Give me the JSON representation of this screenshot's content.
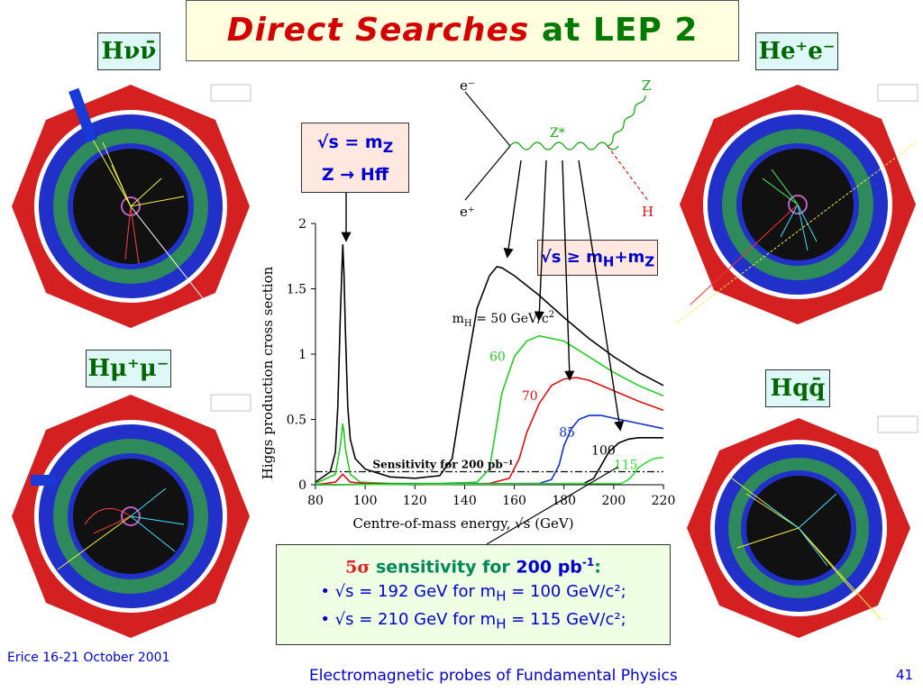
{
  "title": {
    "part1": "Direct Searches",
    "part2": "at LEP 2"
  },
  "labels": {
    "hnn": "Hνν̄",
    "hee": "He⁺e⁻",
    "hmm": "Hμ⁺μ⁻",
    "hqq": "Hqq̄"
  },
  "feynman": {
    "e_minus": "e⁻",
    "e_plus": "e⁺",
    "zstar": "Z*",
    "z": "Z",
    "h": "H"
  },
  "box_mz": {
    "line1": "√s = m",
    "line1_sub": "Z",
    "line2": "Z → Hff̄"
  },
  "box_mhmz": {
    "text": "√s ≥ m",
    "sub_h": "H",
    "plus": "+m",
    "sub_z": "Z"
  },
  "sensitivity": {
    "heading_prefix": "5σ",
    "heading_mid": " sensitivity for ",
    "heading_val": "200 pb",
    "heading_sup": "-1",
    "heading_end": ":",
    "bullet1": "• √s = 192 GeV for m",
    "bullet1_sub": "H",
    "bullet1_end": " = 100 GeV/c²;",
    "bullet2": "• √s = 210 GeV for m",
    "bullet2_sub": "H",
    "bullet2_end": " = 115 GeV/c²;"
  },
  "footer": {
    "left": "Erice 16-21 October 2001",
    "middle": "Electromagnetic probes of Fundamental Physics",
    "page": "41"
  },
  "colors": {
    "ring_red": "#d42020",
    "ring_blue": "#2030c8",
    "ring_green": "#2e8a5a",
    "title_red": "#d40000",
    "title_green": "#007a00"
  },
  "chart_data": {
    "type": "line",
    "xlabel": "Centre-of-mass energy, √s (GeV)",
    "ylabel": "Higgs production cross section",
    "xlim": [
      80,
      220
    ],
    "ylim": [
      0,
      2
    ],
    "xticks": [
      80,
      100,
      120,
      140,
      160,
      180,
      200,
      220
    ],
    "yticks": [
      0,
      0.5,
      1,
      1.5,
      2
    ],
    "ytick_labels": [
      "0",
      "0.5",
      "1",
      "1.5",
      "2"
    ],
    "sensitivity_label": "Sensitivity for 200 pb⁻¹",
    "sensitivity_level": 0.1,
    "series": [
      {
        "name": "m_H = 50 GeV/c²",
        "label_prefix": "m",
        "label_sub": "H",
        "label_rest": " = 50 GeV/c",
        "label_sup": "2",
        "color": "#000000",
        "x": [
          80,
          86,
          88,
          89,
          90,
          91,
          91.5,
          92,
          93,
          94,
          96,
          100,
          110,
          120,
          130,
          135,
          140,
          145,
          150,
          153,
          155,
          160,
          170,
          180,
          190,
          200,
          210,
          220
        ],
        "y": [
          0.02,
          0.1,
          0.25,
          0.6,
          1.3,
          1.84,
          1.6,
          1.2,
          0.6,
          0.35,
          0.2,
          0.12,
          0.06,
          0.05,
          0.07,
          0.2,
          0.8,
          1.35,
          1.6,
          1.67,
          1.66,
          1.6,
          1.45,
          1.28,
          1.12,
          0.98,
          0.86,
          0.76
        ]
      },
      {
        "name": "60",
        "color": "#22cc22",
        "x": [
          80,
          88,
          90,
          91,
          91.5,
          92,
          94,
          98,
          110,
          130,
          145,
          150,
          152,
          155,
          160,
          165,
          170,
          180,
          190,
          200,
          210,
          220
        ],
        "y": [
          0.01,
          0.08,
          0.3,
          0.47,
          0.4,
          0.28,
          0.08,
          0.02,
          0.01,
          0.01,
          0.02,
          0.12,
          0.35,
          0.7,
          0.98,
          1.1,
          1.14,
          1.1,
          0.98,
          0.86,
          0.76,
          0.68
        ]
      },
      {
        "name": "70",
        "color": "#dd1111",
        "x": [
          80,
          88,
          90,
          91,
          92,
          94,
          100,
          120,
          150,
          158,
          162,
          165,
          170,
          175,
          180,
          185,
          190,
          200,
          210,
          220
        ],
        "y": [
          0,
          0.02,
          0.06,
          0.08,
          0.06,
          0.02,
          0.01,
          0,
          0.01,
          0.05,
          0.2,
          0.4,
          0.62,
          0.76,
          0.81,
          0.82,
          0.8,
          0.72,
          0.64,
          0.57
        ]
      },
      {
        "name": "85",
        "color": "#1133cc",
        "x": [
          80,
          170,
          175,
          178,
          180,
          183,
          186,
          190,
          195,
          200,
          210,
          220
        ],
        "y": [
          0,
          0.01,
          0.04,
          0.15,
          0.3,
          0.43,
          0.5,
          0.53,
          0.53,
          0.51,
          0.47,
          0.43
        ]
      },
      {
        "name": "100",
        "color": "#000000",
        "x": [
          80,
          188,
          192,
          195,
          198,
          202,
          206,
          210,
          215,
          220
        ],
        "y": [
          0,
          0.01,
          0.05,
          0.15,
          0.25,
          0.32,
          0.35,
          0.36,
          0.36,
          0.36
        ]
      },
      {
        "name": "115",
        "color": "#33dd33",
        "x": [
          80,
          203,
          206,
          208,
          210,
          213,
          216,
          220
        ],
        "y": [
          0,
          0.01,
          0.04,
          0.08,
          0.13,
          0.17,
          0.2,
          0.21
        ]
      }
    ]
  }
}
